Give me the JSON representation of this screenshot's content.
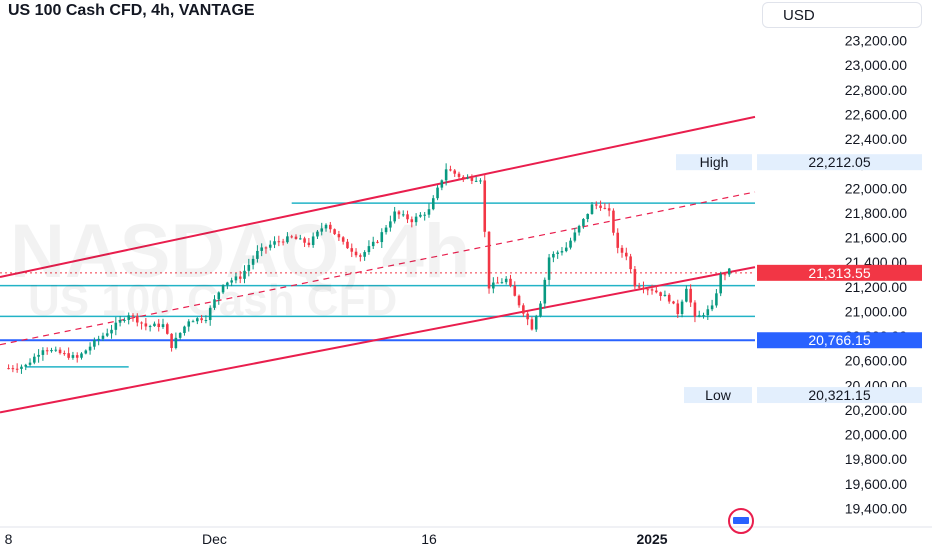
{
  "header": {
    "title": "US 100 Cash CFD, 4h, VANTAGE",
    "currency": "USD"
  },
  "watermark": {
    "line1": "NASDAQ, 4h",
    "line2": "US 100 Cash CFD"
  },
  "colors": {
    "up": "#089981",
    "down": "#f23645",
    "channel": "#e91e4d",
    "level": "#22b3c6",
    "support": "#2962ff",
    "price": "#f23645"
  },
  "chart_data": {
    "type": "candlestick",
    "title": "US 100 Cash CFD, 4h, VANTAGE",
    "ylim": [
      19300,
      23350
    ],
    "y_ticks": [
      "23,200.00",
      "23,000.00",
      "22,800.00",
      "22,600.00",
      "22,400.00",
      "22,200.00",
      "22,000.00",
      "21,800.00",
      "21,600.00",
      "21,400.00",
      "21,200.00",
      "21,000.00",
      "20,800.00",
      "20,600.00",
      "20,400.00",
      "20,200.00",
      "20,000.00",
      "19,800.00",
      "19,600.00",
      "19,400.00"
    ],
    "y_tick_values": [
      23200,
      23000,
      22800,
      22600,
      22400,
      22200,
      22000,
      21800,
      21600,
      21400,
      21200,
      21000,
      20800,
      20600,
      20400,
      20200,
      20000,
      19800,
      19600,
      19400
    ],
    "x_ticks": [
      {
        "label": "8",
        "index": 0
      },
      {
        "label": "Dec",
        "index": 48
      },
      {
        "label": "16",
        "index": 98
      },
      {
        "label": "2025",
        "index": 150
      }
    ],
    "x_range": [
      -2,
      174
    ],
    "labels": {
      "high": {
        "text": "High",
        "value_text": "22,212.05",
        "value": 22212.05
      },
      "low": {
        "text": "Low",
        "value_text": "20,321.15",
        "value": 20321.15
      },
      "last_price": {
        "value_text": "21,313.55",
        "value": 21313.55
      },
      "support_price": {
        "value_text": "20,766.15",
        "value": 20766.15
      }
    },
    "waypoints": [
      [
        0,
        20540
      ],
      [
        4,
        20560
      ],
      [
        8,
        20700
      ],
      [
        12,
        20660
      ],
      [
        16,
        20620
      ],
      [
        20,
        20750
      ],
      [
        24,
        20860
      ],
      [
        28,
        20980
      ],
      [
        32,
        20880
      ],
      [
        36,
        20890
      ],
      [
        38,
        20720
      ],
      [
        42,
        20930
      ],
      [
        46,
        20950
      ],
      [
        50,
        21230
      ],
      [
        54,
        21280
      ],
      [
        58,
        21480
      ],
      [
        62,
        21560
      ],
      [
        66,
        21600
      ],
      [
        70,
        21550
      ],
      [
        74,
        21720
      ],
      [
        78,
        21550
      ],
      [
        82,
        21450
      ],
      [
        86,
        21580
      ],
      [
        90,
        21800
      ],
      [
        94,
        21740
      ],
      [
        98,
        21820
      ],
      [
        102,
        22160
      ],
      [
        106,
        22080
      ],
      [
        110,
        22080
      ],
      [
        112,
        21200
      ],
      [
        116,
        21260
      ],
      [
        118,
        21120
      ],
      [
        120,
        21000
      ],
      [
        122,
        20870
      ],
      [
        124,
        21080
      ],
      [
        126,
        21440
      ],
      [
        130,
        21520
      ],
      [
        134,
        21740
      ],
      [
        136,
        21860
      ],
      [
        138,
        21860
      ],
      [
        140,
        21800
      ],
      [
        142,
        21500
      ],
      [
        144,
        21460
      ],
      [
        146,
        21220
      ],
      [
        150,
        21180
      ],
      [
        154,
        21100
      ],
      [
        156,
        20990
      ],
      [
        158,
        21200
      ],
      [
        160,
        20940
      ],
      [
        164,
        21030
      ],
      [
        166,
        21290
      ],
      [
        168,
        21330
      ]
    ],
    "lines": {
      "channel_upper": [
        [
          -2,
          21280
        ],
        [
          174,
          22580
        ]
      ],
      "channel_lower": [
        [
          -2,
          20180
        ],
        [
          174,
          21360
        ]
      ],
      "channel_mid_dashed": [
        [
          -2,
          20730
        ],
        [
          174,
          21970
        ]
      ],
      "last_price_dotted": [
        [
          -2,
          21313.55
        ],
        [
          174,
          21313.55
        ]
      ],
      "level_21880": [
        [
          66,
          21880
        ],
        [
          174,
          21880
        ]
      ],
      "level_21210": [
        [
          -2,
          21210
        ],
        [
          174,
          21210
        ]
      ],
      "level_20960": [
        [
          -2,
          20960
        ],
        [
          174,
          20960
        ]
      ],
      "support_20766": [
        [
          -2,
          20766.15
        ],
        [
          174,
          20766.15
        ]
      ],
      "level_20550": [
        [
          4,
          20550
        ],
        [
          28,
          20550
        ]
      ]
    }
  }
}
